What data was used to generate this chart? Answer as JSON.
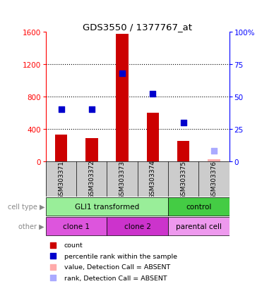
{
  "title": "GDS3550 / 1377767_at",
  "samples": [
    "GSM303371",
    "GSM303372",
    "GSM303373",
    "GSM303374",
    "GSM303375",
    "GSM303376"
  ],
  "counts": [
    330,
    290,
    1570,
    600,
    250,
    30
  ],
  "ranks": [
    40,
    40,
    68,
    52,
    30,
    8
  ],
  "count_absent": [
    false,
    false,
    false,
    false,
    false,
    true
  ],
  "rank_absent": [
    false,
    false,
    false,
    false,
    false,
    true
  ],
  "ylim_left": [
    0,
    1600
  ],
  "ylim_right": [
    0,
    100
  ],
  "yticks_left": [
    0,
    400,
    800,
    1200,
    1600
  ],
  "yticks_right": [
    0,
    25,
    50,
    75,
    100
  ],
  "ytick_labels_right": [
    "0",
    "25",
    "50",
    "75",
    "100%"
  ],
  "bar_color_present": "#cc0000",
  "bar_color_absent": "#ffaaaa",
  "dot_color_present": "#0000cc",
  "dot_color_absent": "#aaaaff",
  "hgrid_values": [
    400,
    800,
    1200
  ],
  "cell_type_groups": [
    {
      "label": "GLI1 transformed",
      "start": 0,
      "end": 4,
      "color": "#99ee99"
    },
    {
      "label": "control",
      "start": 4,
      "end": 6,
      "color": "#44cc44"
    }
  ],
  "other_groups": [
    {
      "label": "clone 1",
      "start": 0,
      "end": 2,
      "color": "#dd55dd"
    },
    {
      "label": "clone 2",
      "start": 2,
      "end": 4,
      "color": "#cc33cc"
    },
    {
      "label": "parental cell",
      "start": 4,
      "end": 6,
      "color": "#ee99ee"
    }
  ],
  "legend_items": [
    {
      "label": "count",
      "color": "#cc0000"
    },
    {
      "label": "percentile rank within the sample",
      "color": "#0000cc"
    },
    {
      "label": "value, Detection Call = ABSENT",
      "color": "#ffaaaa"
    },
    {
      "label": "rank, Detection Call = ABSENT",
      "color": "#aaaaff"
    }
  ],
  "cell_type_row_label": "cell type",
  "other_row_label": "other",
  "bar_width": 0.4,
  "dot_size": 35,
  "sample_bg": "#cccccc",
  "row_label_color": "#888888",
  "arrow_color": "#888888"
}
